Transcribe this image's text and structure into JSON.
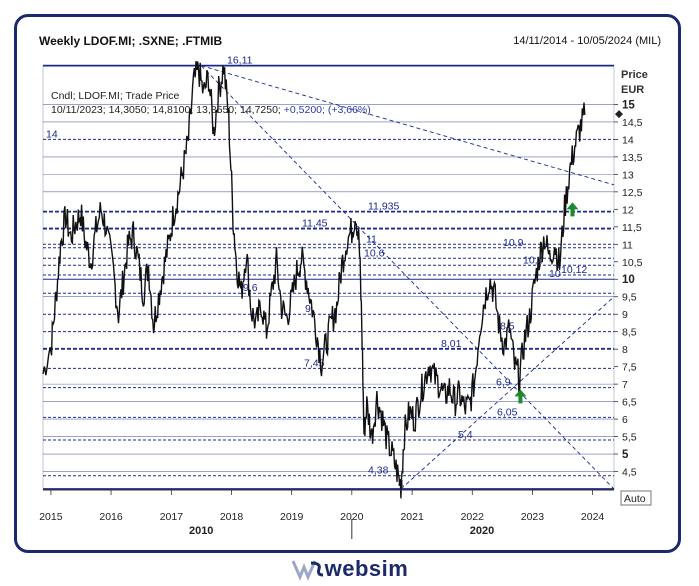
{
  "header": {
    "title": "Weekly LDOF.MI; .SXNE; .FTMIB",
    "date_range": "14/11/2014 - 10/05/2024 (MIL)"
  },
  "brand": {
    "name": "websim"
  },
  "chart_data": {
    "type": "line",
    "series": [
      {
        "name": "Cndl; LDOF.MI; Trade Price",
        "points": [
          [
            "2014-11-14",
            7.3
          ],
          [
            "2015-01-05",
            8.2
          ],
          [
            "2015-02-01",
            9.5
          ],
          [
            "2015-03-01",
            11.0
          ],
          [
            "2015-04-01",
            11.8
          ],
          [
            "2015-05-01",
            11.2
          ],
          [
            "2015-06-01",
            11.6
          ],
          [
            "2015-07-01",
            11.9
          ],
          [
            "2015-08-01",
            11.0
          ],
          [
            "2015-09-01",
            10.5
          ],
          [
            "2015-10-01",
            11.4
          ],
          [
            "2015-11-01",
            12.0
          ],
          [
            "2015-12-01",
            11.5
          ],
          [
            "2016-01-15",
            10.2
          ],
          [
            "2016-02-15",
            9.0
          ],
          [
            "2016-03-15",
            10.0
          ],
          [
            "2016-04-15",
            11.0
          ],
          [
            "2016-05-15",
            11.3
          ],
          [
            "2016-06-15",
            10.5
          ],
          [
            "2016-07-15",
            9.6
          ],
          [
            "2016-08-15",
            10.4
          ],
          [
            "2016-09-15",
            8.7
          ],
          [
            "2016-10-15",
            9.5
          ],
          [
            "2016-11-15",
            10.3
          ],
          [
            "2016-12-15",
            11.0
          ],
          [
            "2017-01-15",
            11.9
          ],
          [
            "2017-02-15",
            12.5
          ],
          [
            "2017-03-15",
            13.2
          ],
          [
            "2017-04-15",
            14.0
          ],
          [
            "2017-05-15",
            15.6
          ],
          [
            "2017-06-15",
            16.0
          ],
          [
            "2017-07-15",
            15.3
          ],
          [
            "2017-08-15",
            15.8
          ],
          [
            "2017-09-15",
            14.2
          ],
          [
            "2017-10-15",
            15.4
          ],
          [
            "2017-11-15",
            16.1
          ],
          [
            "2017-12-15",
            14.6
          ],
          [
            "2018-01-10",
            11.8
          ],
          [
            "2018-02-01",
            10.4
          ],
          [
            "2018-03-01",
            9.6
          ],
          [
            "2018-04-01",
            10.8
          ],
          [
            "2018-05-01",
            9.1
          ],
          [
            "2018-06-01",
            8.7
          ],
          [
            "2018-07-01",
            9.3
          ],
          [
            "2018-08-01",
            8.5
          ],
          [
            "2018-09-01",
            9.6
          ],
          [
            "2018-10-01",
            10.5
          ],
          [
            "2018-11-01",
            9.2
          ],
          [
            "2018-12-01",
            8.9
          ],
          [
            "2019-01-01",
            9.4
          ],
          [
            "2019-02-01",
            10.2
          ],
          [
            "2019-03-01",
            10.6
          ],
          [
            "2019-04-01",
            10.0
          ],
          [
            "2019-05-01",
            9.3
          ],
          [
            "2019-06-01",
            8.5
          ],
          [
            "2019-07-01",
            7.6
          ],
          [
            "2019-08-01",
            8.2
          ],
          [
            "2019-09-01",
            8.8
          ],
          [
            "2019-10-01",
            9.2
          ],
          [
            "2019-11-01",
            10.4
          ],
          [
            "2019-12-01",
            11.1
          ],
          [
            "2020-01-01",
            11.4
          ],
          [
            "2020-01-25",
            11.9
          ],
          [
            "2020-02-15",
            11.0
          ],
          [
            "2020-03-01",
            8.8
          ],
          [
            "2020-03-15",
            5.6
          ],
          [
            "2020-04-01",
            6.4
          ],
          [
            "2020-05-01",
            5.5
          ],
          [
            "2020-06-01",
            6.6
          ],
          [
            "2020-07-01",
            6.1
          ],
          [
            "2020-08-01",
            5.4
          ],
          [
            "2020-09-01",
            5.0
          ],
          [
            "2020-10-01",
            4.5
          ],
          [
            "2020-10-25",
            4.1
          ],
          [
            "2020-11-15",
            5.6
          ],
          [
            "2020-12-15",
            6.2
          ],
          [
            "2021-01-15",
            6.0
          ],
          [
            "2021-02-15",
            6.6
          ],
          [
            "2021-03-15",
            7.1
          ],
          [
            "2021-04-15",
            7.6
          ],
          [
            "2021-05-15",
            7.2
          ],
          [
            "2021-06-15",
            7.0
          ],
          [
            "2021-07-15",
            6.6
          ],
          [
            "2021-08-15",
            6.9
          ],
          [
            "2021-09-15",
            6.5
          ],
          [
            "2021-10-15",
            6.7
          ],
          [
            "2021-11-15",
            6.3
          ],
          [
            "2021-12-15",
            6.4
          ],
          [
            "2022-01-15",
            7.1
          ],
          [
            "2022-02-15",
            8.6
          ],
          [
            "2022-03-15",
            9.4
          ],
          [
            "2022-04-15",
            10.0
          ],
          [
            "2022-05-15",
            9.6
          ],
          [
            "2022-06-15",
            8.6
          ],
          [
            "2022-07-15",
            8.1
          ],
          [
            "2022-08-15",
            8.6
          ],
          [
            "2022-09-15",
            7.5
          ],
          [
            "2022-10-15",
            7.2
          ],
          [
            "2022-11-15",
            8.3
          ],
          [
            "2022-12-15",
            8.9
          ],
          [
            "2023-01-15",
            9.9
          ],
          [
            "2023-02-15",
            10.7
          ],
          [
            "2023-03-15",
            11.2
          ],
          [
            "2023-04-15",
            10.6
          ],
          [
            "2023-05-15",
            11.0
          ],
          [
            "2023-06-15",
            10.4
          ],
          [
            "2023-07-15",
            12.0
          ],
          [
            "2023-08-15",
            13.1
          ],
          [
            "2023-09-15",
            13.8
          ],
          [
            "2023-10-15",
            14.3
          ],
          [
            "2023-11-15",
            14.7
          ]
        ]
      }
    ],
    "legend": {
      "line1": "Cndl; LDOF.MI; Trade Price",
      "line2": "10/11/2023; 14,3050; 14,8100; 13,8550; 14,7250; +0,5200; (+3,66%)"
    },
    "x_axis": {
      "ticks": [
        "2015",
        "2016",
        "2017",
        "2018",
        "2019",
        "2020",
        "2021",
        "2022",
        "2023",
        "2024"
      ],
      "decades": [
        "2010",
        "2020"
      ]
    },
    "y_axis": {
      "label_price": "Price",
      "label_currency": "EUR",
      "ylim": [
        4,
        16.1
      ],
      "ticks": [
        "4,5",
        "5",
        "5,5",
        "6",
        "6,5",
        "7",
        "7,5",
        "8",
        "8,5",
        "9",
        "9,5",
        "10",
        "10,5",
        "11",
        "11,5",
        "12",
        "12,5",
        "13",
        "13,5",
        "14",
        "14,5",
        "15"
      ],
      "bold_ticks": [
        "5",
        "10",
        "15"
      ],
      "auto_label": "Auto"
    },
    "horizontal_levels": [
      {
        "value": 16.11,
        "label": "16,11"
      },
      {
        "value": 14,
        "label": "14"
      },
      {
        "value": 11.935,
        "label": "11,935"
      },
      {
        "value": 11.45,
        "label": "11,45"
      },
      {
        "value": 11,
        "label": "11"
      },
      {
        "value": 10.9,
        "label": "10,9"
      },
      {
        "value": 10.6,
        "label": "10,6"
      },
      {
        "value": 10.4,
        "label": "10,4"
      },
      {
        "value": 10.12,
        "label": "10,12"
      },
      {
        "value": 10,
        "label": "10"
      },
      {
        "value": 9.6,
        "label": "9,6"
      },
      {
        "value": 9,
        "label": "9"
      },
      {
        "value": 8.5,
        "label": "8,5"
      },
      {
        "value": 8.01,
        "label": "8,01"
      },
      {
        "value": 7.45,
        "label": "7,45"
      },
      {
        "value": 6.9,
        "label": "6,9"
      },
      {
        "value": 6.05,
        "label": "6,05"
      },
      {
        "value": 5.4,
        "label": "5,4"
      },
      {
        "value": 4.38,
        "label": "4,38"
      },
      {
        "value": 4,
        "label": "4"
      }
    ],
    "trendlines": [
      {
        "from": [
          "2017-07-01",
          16.11
        ],
        "to": [
          "2024-05-10",
          12.7
        ]
      },
      {
        "from": [
          "2017-07-01",
          16.11
        ],
        "to": [
          "2024-05-10",
          4.0
        ]
      },
      {
        "from": [
          "2020-10-25",
          4.0
        ],
        "to": [
          "2024-05-10",
          9.5
        ]
      }
    ],
    "last_value": 14.725
  }
}
